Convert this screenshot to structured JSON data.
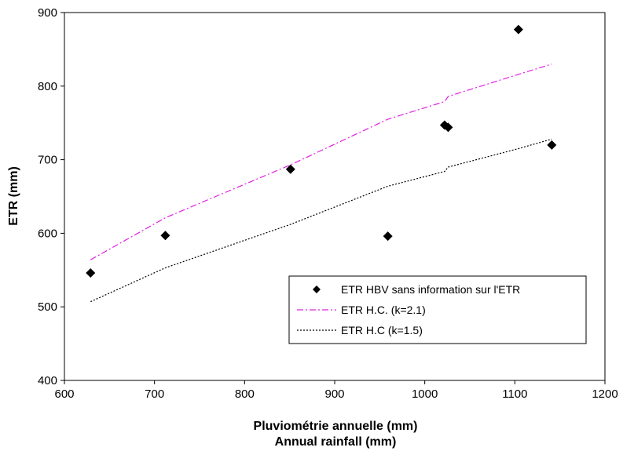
{
  "chart_data": {
    "type": "scatter",
    "xlabel": "Pluviométrie annuelle (mm)",
    "xlabel2": "Annual rainfall (mm)",
    "ylabel": "ETR (mm)",
    "xlim": [
      600,
      1200
    ],
    "ylim": [
      400,
      900
    ],
    "x_ticks": [
      600,
      700,
      800,
      900,
      1000,
      1100,
      1200
    ],
    "y_ticks": [
      400,
      500,
      600,
      700,
      800,
      900
    ],
    "grid": false,
    "legend_position": "bottom-right",
    "series": [
      {
        "name": "ETR HBV sans information sur l'ETR",
        "kind": "markers",
        "marker": "diamond",
        "color": "#000000",
        "points": [
          {
            "x": 629,
            "y": 546
          },
          {
            "x": 712,
            "y": 597
          },
          {
            "x": 851,
            "y": 687
          },
          {
            "x": 959,
            "y": 596
          },
          {
            "x": 1022,
            "y": 747
          },
          {
            "x": 1026,
            "y": 744
          },
          {
            "x": 1104,
            "y": 877
          },
          {
            "x": 1141,
            "y": 720
          }
        ]
      },
      {
        "name": "ETR H.C. (k=2.1)",
        "kind": "line",
        "dash": "dash-dot",
        "color": "#e020e0",
        "points": [
          {
            "x": 629,
            "y": 564
          },
          {
            "x": 712,
            "y": 621
          },
          {
            "x": 851,
            "y": 693
          },
          {
            "x": 959,
            "y": 755
          },
          {
            "x": 1022,
            "y": 779
          },
          {
            "x": 1026,
            "y": 786
          },
          {
            "x": 1104,
            "y": 816
          },
          {
            "x": 1141,
            "y": 830
          }
        ]
      },
      {
        "name": "ETR H.C (k=1.5)",
        "kind": "line",
        "dash": "dotted",
        "color": "#000000",
        "points": [
          {
            "x": 629,
            "y": 507
          },
          {
            "x": 712,
            "y": 553
          },
          {
            "x": 851,
            "y": 612
          },
          {
            "x": 959,
            "y": 664
          },
          {
            "x": 1022,
            "y": 684
          },
          {
            "x": 1026,
            "y": 690
          },
          {
            "x": 1104,
            "y": 715
          },
          {
            "x": 1141,
            "y": 728
          }
        ]
      }
    ]
  }
}
